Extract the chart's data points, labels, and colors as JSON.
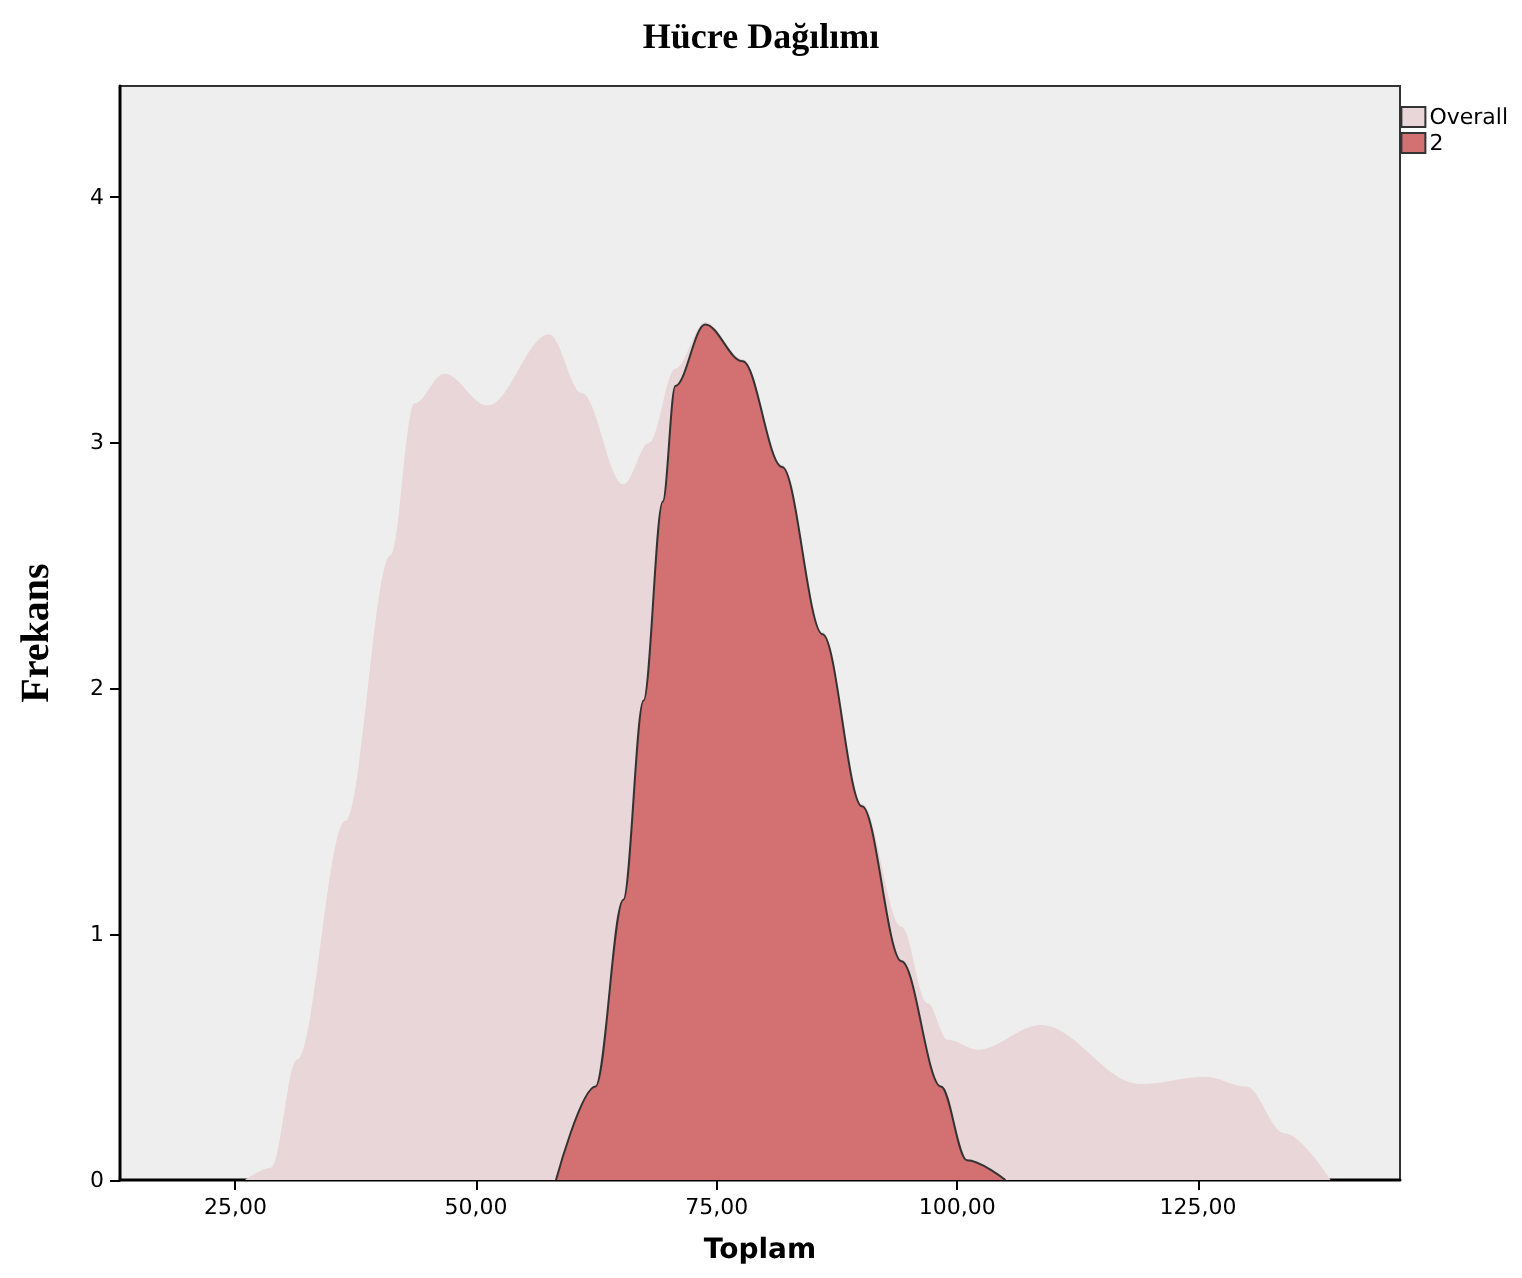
{
  "chart_data": {
    "type": "area",
    "title": "Hücre Dağılımı",
    "xlabel": "Toplam",
    "ylabel": "Frekans",
    "xlim": [
      13,
      146
    ],
    "ylim": [
      0,
      4.45
    ],
    "xticks": [
      {
        "value": 25,
        "label": "25,00"
      },
      {
        "value": 50,
        "label": "50,00"
      },
      {
        "value": 75,
        "label": "75,00"
      },
      {
        "value": 100,
        "label": "100,00"
      },
      {
        "value": 125,
        "label": "125,00"
      }
    ],
    "yticks": [
      0,
      1,
      2,
      3,
      4
    ],
    "grid": false,
    "legend": "top right",
    "series": [
      {
        "name": "Overall",
        "color": "#e8d6d8",
        "x": [
          26,
          28.7,
          31.4,
          36.4,
          41.1,
          43.6,
          46.7,
          51.2,
          57.6,
          61,
          65.3,
          68,
          70.7,
          73.8,
          77.7,
          81.8,
          86,
          90.1,
          94.2,
          96.9,
          99,
          102.1,
          108.7,
          119,
          125.8,
          130,
          134,
          138.8
        ],
        "values": [
          0,
          0.05,
          0.49,
          1.46,
          2.54,
          3.16,
          3.28,
          3.15,
          3.44,
          3.2,
          2.83,
          3.0,
          3.3,
          3.49,
          3.34,
          2.91,
          2.23,
          1.53,
          1.03,
          0.72,
          0.57,
          0.53,
          0.63,
          0.39,
          0.42,
          0.38,
          0.19,
          0
        ]
      },
      {
        "name": "2",
        "color": "#d37071",
        "x": [
          58.3,
          62.4,
          65.3,
          67.4,
          69.4,
          70.7,
          73.8,
          77.7,
          81.8,
          86,
          90.1,
          94.2,
          98.3,
          101,
          105
        ],
        "values": [
          0,
          0.38,
          1.14,
          1.95,
          2.76,
          3.23,
          3.48,
          3.33,
          2.9,
          2.22,
          1.52,
          0.89,
          0.38,
          0.08,
          0
        ]
      }
    ]
  }
}
